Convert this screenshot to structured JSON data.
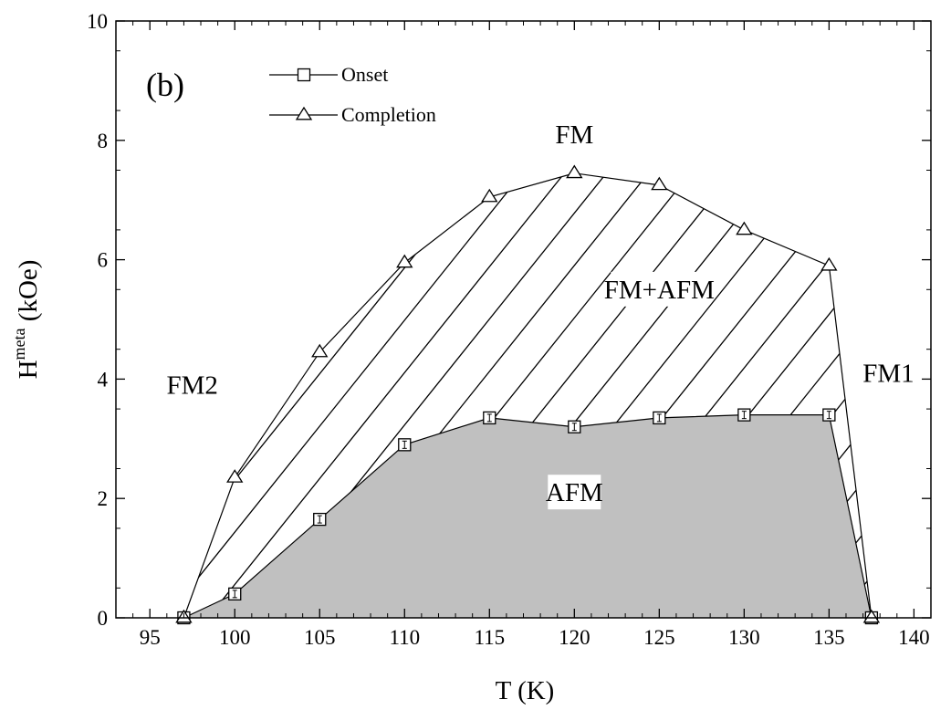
{
  "chart_data": {
    "type": "line",
    "panel_label": "(b)",
    "xlabel": "T (K)",
    "ylabel_base": "H",
    "ylabel_super": "meta",
    "ylabel_unit": " (kOe)",
    "xlim": [
      93,
      141
    ],
    "ylim": [
      0,
      10
    ],
    "xticks": [
      95,
      100,
      105,
      110,
      115,
      120,
      125,
      130,
      135,
      140
    ],
    "yticks": [
      0,
      2,
      4,
      6,
      8,
      10
    ],
    "grid": false,
    "legend_position": "top-left",
    "series": [
      {
        "name": "Onset",
        "marker": "square",
        "x": [
          97,
          100,
          105,
          110,
          115,
          120,
          125,
          130,
          135,
          137.5
        ],
        "y": [
          0,
          0.4,
          1.65,
          2.9,
          3.35,
          3.2,
          3.35,
          3.4,
          3.4,
          0
        ]
      },
      {
        "name": "Completion",
        "marker": "triangle",
        "x": [
          97,
          100,
          105,
          110,
          115,
          120,
          125,
          130,
          135,
          137.5
        ],
        "y": [
          0,
          2.35,
          4.45,
          5.95,
          7.05,
          7.45,
          7.25,
          6.5,
          5.9,
          0
        ]
      }
    ],
    "regions": [
      {
        "label": "FM",
        "x": 120,
        "y": 8.0
      },
      {
        "label": "FM+AFM",
        "x": 125,
        "y": 5.4
      },
      {
        "label": "FM2",
        "x": 97.5,
        "y": 3.8
      },
      {
        "label": "FM1",
        "x": 138.5,
        "y": 4.0
      },
      {
        "label": "AFM",
        "x": 120,
        "y": 2.0
      }
    ],
    "colors": {
      "afm_fill": "#c0c0c0",
      "line": "#000000",
      "background": "#ffffff"
    }
  }
}
